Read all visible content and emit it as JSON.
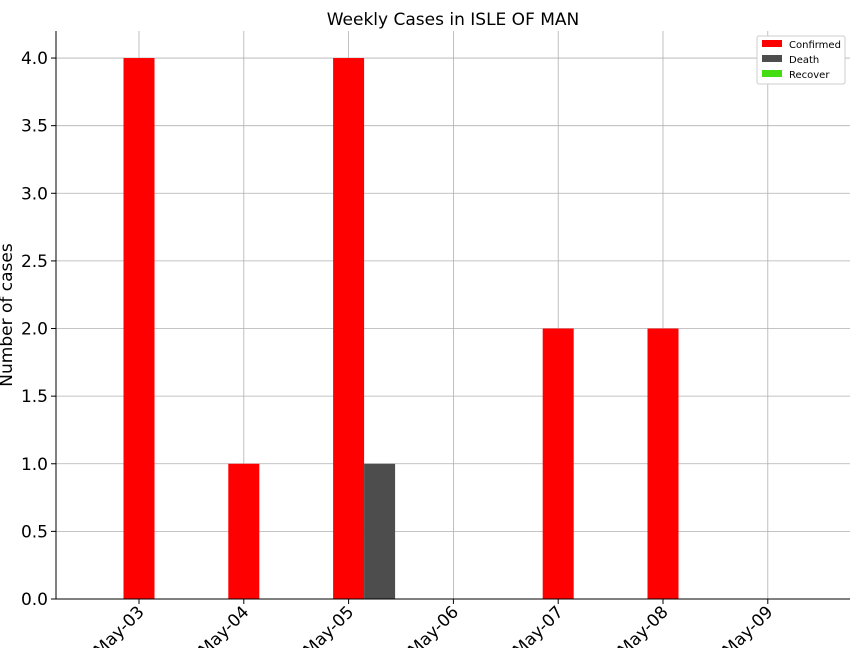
{
  "chart_data": {
    "type": "bar",
    "title": "Weekly Cases in ISLE OF MAN",
    "xlabel": "",
    "ylabel": "Number of cases",
    "categories": [
      "May-03",
      "May-04",
      "May-05",
      "May-06",
      "May-07",
      "May-08",
      "May-09"
    ],
    "series": [
      {
        "name": "Confirmed",
        "color": "#ff0000",
        "values": [
          4,
          1,
          4,
          0,
          2,
          2,
          0
        ]
      },
      {
        "name": "Death",
        "color": "#4d4d4d",
        "values": [
          0,
          0,
          1,
          0,
          0,
          0,
          0
        ]
      },
      {
        "name": "Recover",
        "color": "#44dd11",
        "values": [
          0,
          0,
          0,
          0,
          0,
          0,
          0
        ]
      }
    ],
    "ylim": [
      0,
      4.2
    ],
    "yticks": [
      "0.0",
      "0.5",
      "1.0",
      "1.5",
      "2.0",
      "2.5",
      "3.0",
      "3.5",
      "4.0"
    ],
    "grid": true,
    "legend_position": "top-right"
  }
}
